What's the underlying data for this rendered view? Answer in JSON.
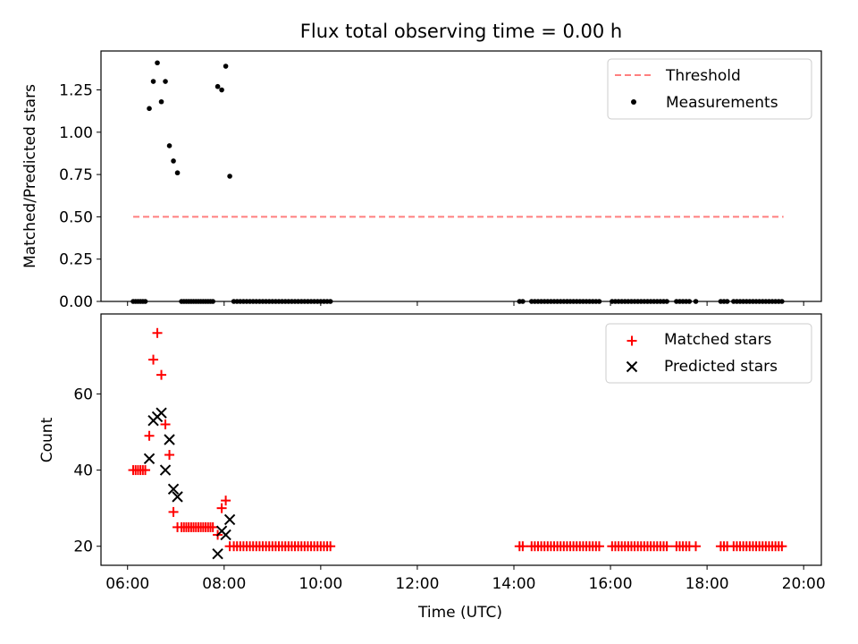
{
  "chart_data": [
    {
      "type": "scatter",
      "title": "Flux total observing time = 0.00 h",
      "ylabel": "Matched/Predicted stars",
      "xlabel": "",
      "xlim": [
        "05:27",
        "20:22"
      ],
      "ylim": [
        0,
        1.48
      ],
      "yticks": [
        "0.00",
        "0.25",
        "0.50",
        "0.75",
        "1.00",
        "1.25"
      ],
      "legend_position": "top-right",
      "legend": [
        {
          "label": "Threshold",
          "style": "dashed-line",
          "color": "#ff7f7f"
        },
        {
          "label": "Measurements",
          "style": "dot",
          "color": "#000000"
        }
      ],
      "threshold": {
        "x_start": "06:07",
        "x_end": "19:35",
        "y": 0.5
      },
      "measurements": [
        [
          "06:07",
          0
        ],
        [
          "06:10",
          0
        ],
        [
          "06:13",
          0
        ],
        [
          "06:16",
          0
        ],
        [
          "06:19",
          0
        ],
        [
          "06:22",
          0
        ],
        [
          "06:27",
          1.14
        ],
        [
          "06:32",
          1.3
        ],
        [
          "06:37",
          1.41
        ],
        [
          "06:42",
          1.18
        ],
        [
          "06:47",
          1.3
        ],
        [
          "06:52",
          0.92
        ],
        [
          "06:57",
          0.83
        ],
        [
          "07:02",
          0.76
        ],
        [
          "07:07",
          0
        ],
        [
          "07:10",
          0
        ],
        [
          "07:13",
          0
        ],
        [
          "07:16",
          0
        ],
        [
          "07:19",
          0
        ],
        [
          "07:22",
          0
        ],
        [
          "07:25",
          0
        ],
        [
          "07:28",
          0
        ],
        [
          "07:31",
          0
        ],
        [
          "07:34",
          0
        ],
        [
          "07:37",
          0
        ],
        [
          "07:40",
          0
        ],
        [
          "07:43",
          0
        ],
        [
          "07:46",
          0
        ],
        [
          "07:52",
          1.27
        ],
        [
          "07:57",
          1.25
        ],
        [
          "08:02",
          1.39
        ],
        [
          "08:07",
          0.74
        ],
        [
          "08:12",
          0
        ],
        [
          "08:16",
          0
        ],
        [
          "08:20",
          0
        ],
        [
          "08:24",
          0
        ],
        [
          "08:28",
          0
        ],
        [
          "08:32",
          0
        ],
        [
          "08:36",
          0
        ],
        [
          "08:40",
          0
        ],
        [
          "08:44",
          0
        ],
        [
          "08:48",
          0
        ],
        [
          "08:52",
          0
        ],
        [
          "08:56",
          0
        ],
        [
          "09:00",
          0
        ],
        [
          "09:04",
          0
        ],
        [
          "09:08",
          0
        ],
        [
          "09:12",
          0
        ],
        [
          "09:16",
          0
        ],
        [
          "09:20",
          0
        ],
        [
          "09:24",
          0
        ],
        [
          "09:28",
          0
        ],
        [
          "09:32",
          0
        ],
        [
          "09:36",
          0
        ],
        [
          "09:40",
          0
        ],
        [
          "09:44",
          0
        ],
        [
          "09:48",
          0
        ],
        [
          "09:52",
          0
        ],
        [
          "09:56",
          0
        ],
        [
          "10:00",
          0
        ],
        [
          "10:04",
          0
        ],
        [
          "10:08",
          0
        ],
        [
          "10:12",
          0
        ],
        [
          "14:07",
          0
        ],
        [
          "14:11",
          0
        ],
        [
          "14:22",
          0
        ],
        [
          "14:26",
          0
        ],
        [
          "14:30",
          0
        ],
        [
          "14:34",
          0
        ],
        [
          "14:38",
          0
        ],
        [
          "14:42",
          0
        ],
        [
          "14:46",
          0
        ],
        [
          "14:50",
          0
        ],
        [
          "14:54",
          0
        ],
        [
          "14:58",
          0
        ],
        [
          "15:02",
          0
        ],
        [
          "15:06",
          0
        ],
        [
          "15:10",
          0
        ],
        [
          "15:14",
          0
        ],
        [
          "15:18",
          0
        ],
        [
          "15:22",
          0
        ],
        [
          "15:26",
          0
        ],
        [
          "15:30",
          0
        ],
        [
          "15:34",
          0
        ],
        [
          "15:38",
          0
        ],
        [
          "15:42",
          0
        ],
        [
          "15:46",
          0
        ],
        [
          "16:02",
          0
        ],
        [
          "16:06",
          0
        ],
        [
          "16:10",
          0
        ],
        [
          "16:14",
          0
        ],
        [
          "16:18",
          0
        ],
        [
          "16:22",
          0
        ],
        [
          "16:26",
          0
        ],
        [
          "16:30",
          0
        ],
        [
          "16:34",
          0
        ],
        [
          "16:38",
          0
        ],
        [
          "16:42",
          0
        ],
        [
          "16:46",
          0
        ],
        [
          "16:50",
          0
        ],
        [
          "16:54",
          0
        ],
        [
          "16:58",
          0
        ],
        [
          "17:02",
          0
        ],
        [
          "17:06",
          0
        ],
        [
          "17:10",
          0
        ],
        [
          "17:22",
          0
        ],
        [
          "17:26",
          0
        ],
        [
          "17:30",
          0
        ],
        [
          "17:34",
          0
        ],
        [
          "17:38",
          0
        ],
        [
          "17:46",
          0
        ],
        [
          "18:17",
          0
        ],
        [
          "18:21",
          0
        ],
        [
          "18:25",
          0
        ],
        [
          "18:33",
          0
        ],
        [
          "18:37",
          0
        ],
        [
          "18:41",
          0
        ],
        [
          "18:45",
          0
        ],
        [
          "18:49",
          0
        ],
        [
          "18:53",
          0
        ],
        [
          "18:57",
          0
        ],
        [
          "19:01",
          0
        ],
        [
          "19:05",
          0
        ],
        [
          "19:09",
          0
        ],
        [
          "19:13",
          0
        ],
        [
          "19:17",
          0
        ],
        [
          "19:21",
          0
        ],
        [
          "19:25",
          0
        ],
        [
          "19:29",
          0
        ],
        [
          "19:33",
          0
        ]
      ]
    },
    {
      "type": "scatter",
      "title": "",
      "xlabel": "Time (UTC)",
      "ylabel": "Count",
      "xlim": [
        "05:27",
        "20:22"
      ],
      "ylim": [
        15,
        81
      ],
      "xticks": [
        "06:00",
        "08:00",
        "10:00",
        "12:00",
        "14:00",
        "16:00",
        "18:00",
        "20:00"
      ],
      "yticks": [
        "20",
        "40",
        "60"
      ],
      "legend_position": "top-right",
      "series": [
        {
          "name": "Matched stars",
          "marker": "+",
          "color": "#ff0000",
          "points": [
            [
              "06:07",
              40
            ],
            [
              "06:10",
              40
            ],
            [
              "06:13",
              40
            ],
            [
              "06:16",
              40
            ],
            [
              "06:19",
              40
            ],
            [
              "06:22",
              40
            ],
            [
              "06:27",
              49
            ],
            [
              "06:32",
              69
            ],
            [
              "06:37",
              76
            ],
            [
              "06:42",
              65
            ],
            [
              "06:47",
              52
            ],
            [
              "06:52",
              44
            ],
            [
              "06:57",
              29
            ],
            [
              "07:02",
              25
            ],
            [
              "07:07",
              25
            ],
            [
              "07:10",
              25
            ],
            [
              "07:13",
              25
            ],
            [
              "07:16",
              25
            ],
            [
              "07:19",
              25
            ],
            [
              "07:22",
              25
            ],
            [
              "07:25",
              25
            ],
            [
              "07:28",
              25
            ],
            [
              "07:31",
              25
            ],
            [
              "07:34",
              25
            ],
            [
              "07:37",
              25
            ],
            [
              "07:40",
              25
            ],
            [
              "07:43",
              25
            ],
            [
              "07:46",
              25
            ],
            [
              "07:52",
              23
            ],
            [
              "07:57",
              30
            ],
            [
              "08:02",
              32
            ],
            [
              "08:07",
              20
            ],
            [
              "08:12",
              20
            ],
            [
              "08:16",
              20
            ],
            [
              "08:20",
              20
            ],
            [
              "08:24",
              20
            ],
            [
              "08:28",
              20
            ],
            [
              "08:32",
              20
            ],
            [
              "08:36",
              20
            ],
            [
              "08:40",
              20
            ],
            [
              "08:44",
              20
            ],
            [
              "08:48",
              20
            ],
            [
              "08:52",
              20
            ],
            [
              "08:56",
              20
            ],
            [
              "09:00",
              20
            ],
            [
              "09:04",
              20
            ],
            [
              "09:08",
              20
            ],
            [
              "09:12",
              20
            ],
            [
              "09:16",
              20
            ],
            [
              "09:20",
              20
            ],
            [
              "09:24",
              20
            ],
            [
              "09:28",
              20
            ],
            [
              "09:32",
              20
            ],
            [
              "09:36",
              20
            ],
            [
              "09:40",
              20
            ],
            [
              "09:44",
              20
            ],
            [
              "09:48",
              20
            ],
            [
              "09:52",
              20
            ],
            [
              "09:56",
              20
            ],
            [
              "10:00",
              20
            ],
            [
              "10:04",
              20
            ],
            [
              "10:08",
              20
            ],
            [
              "10:12",
              20
            ],
            [
              "14:07",
              20
            ],
            [
              "14:11",
              20
            ],
            [
              "14:22",
              20
            ],
            [
              "14:26",
              20
            ],
            [
              "14:30",
              20
            ],
            [
              "14:34",
              20
            ],
            [
              "14:38",
              20
            ],
            [
              "14:42",
              20
            ],
            [
              "14:46",
              20
            ],
            [
              "14:50",
              20
            ],
            [
              "14:54",
              20
            ],
            [
              "14:58",
              20
            ],
            [
              "15:02",
              20
            ],
            [
              "15:06",
              20
            ],
            [
              "15:10",
              20
            ],
            [
              "15:14",
              20
            ],
            [
              "15:18",
              20
            ],
            [
              "15:22",
              20
            ],
            [
              "15:26",
              20
            ],
            [
              "15:30",
              20
            ],
            [
              "15:34",
              20
            ],
            [
              "15:38",
              20
            ],
            [
              "15:42",
              20
            ],
            [
              "15:46",
              20
            ],
            [
              "16:02",
              20
            ],
            [
              "16:06",
              20
            ],
            [
              "16:10",
              20
            ],
            [
              "16:14",
              20
            ],
            [
              "16:18",
              20
            ],
            [
              "16:22",
              20
            ],
            [
              "16:26",
              20
            ],
            [
              "16:30",
              20
            ],
            [
              "16:34",
              20
            ],
            [
              "16:38",
              20
            ],
            [
              "16:42",
              20
            ],
            [
              "16:46",
              20
            ],
            [
              "16:50",
              20
            ],
            [
              "16:54",
              20
            ],
            [
              "16:58",
              20
            ],
            [
              "17:02",
              20
            ],
            [
              "17:06",
              20
            ],
            [
              "17:10",
              20
            ],
            [
              "17:22",
              20
            ],
            [
              "17:26",
              20
            ],
            [
              "17:30",
              20
            ],
            [
              "17:34",
              20
            ],
            [
              "17:38",
              20
            ],
            [
              "17:46",
              20
            ],
            [
              "18:17",
              20
            ],
            [
              "18:21",
              20
            ],
            [
              "18:25",
              20
            ],
            [
              "18:33",
              20
            ],
            [
              "18:37",
              20
            ],
            [
              "18:41",
              20
            ],
            [
              "18:45",
              20
            ],
            [
              "18:49",
              20
            ],
            [
              "18:53",
              20
            ],
            [
              "18:57",
              20
            ],
            [
              "19:01",
              20
            ],
            [
              "19:05",
              20
            ],
            [
              "19:09",
              20
            ],
            [
              "19:13",
              20
            ],
            [
              "19:17",
              20
            ],
            [
              "19:21",
              20
            ],
            [
              "19:25",
              20
            ],
            [
              "19:29",
              20
            ],
            [
              "19:33",
              20
            ]
          ]
        },
        {
          "name": "Predicted stars",
          "marker": "x",
          "color": "#000000",
          "points": [
            [
              "06:27",
              43
            ],
            [
              "06:32",
              53
            ],
            [
              "06:37",
              54
            ],
            [
              "06:42",
              55
            ],
            [
              "06:47",
              40
            ],
            [
              "06:52",
              48
            ],
            [
              "06:57",
              35
            ],
            [
              "07:02",
              33
            ],
            [
              "07:52",
              18
            ],
            [
              "07:57",
              24
            ],
            [
              "08:02",
              23
            ],
            [
              "08:07",
              27
            ]
          ]
        }
      ]
    }
  ]
}
